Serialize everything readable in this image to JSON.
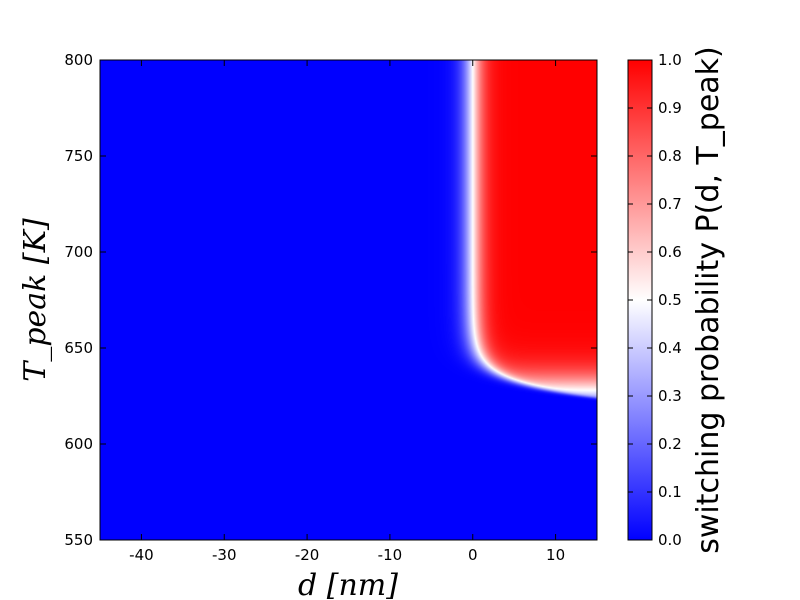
{
  "chart_data": {
    "type": "heatmap",
    "title": "",
    "xlabel": "d [nm]",
    "ylabel": "T_peak [K]",
    "xlim": [
      -45,
      15
    ],
    "ylim": [
      550,
      800
    ],
    "xticks": [
      -40,
      -30,
      -20,
      -10,
      0,
      10
    ],
    "yticks": [
      550,
      600,
      650,
      700,
      750,
      800
    ],
    "colorbar": {
      "label": "switching probability P(d, T_peak)",
      "range": [
        0.0,
        1.0
      ],
      "ticks": [
        0.0,
        0.1,
        0.2,
        0.3,
        0.4,
        0.5,
        0.6,
        0.7,
        0.8,
        0.9,
        1.0
      ],
      "colors": {
        "low": "#0000ff",
        "mid": "#ffffff",
        "high": "#ff0000"
      }
    },
    "regions": [
      {
        "description": "P≈0 for d<0 (all temperatures) and for T below ~620 K",
        "value": 0.0
      },
      {
        "description": "P≈1 for d>0 and T above ~635 K",
        "value": 1.0
      }
    ],
    "transition": {
      "d_boundary": 0,
      "t_boundary": 628
    }
  }
}
